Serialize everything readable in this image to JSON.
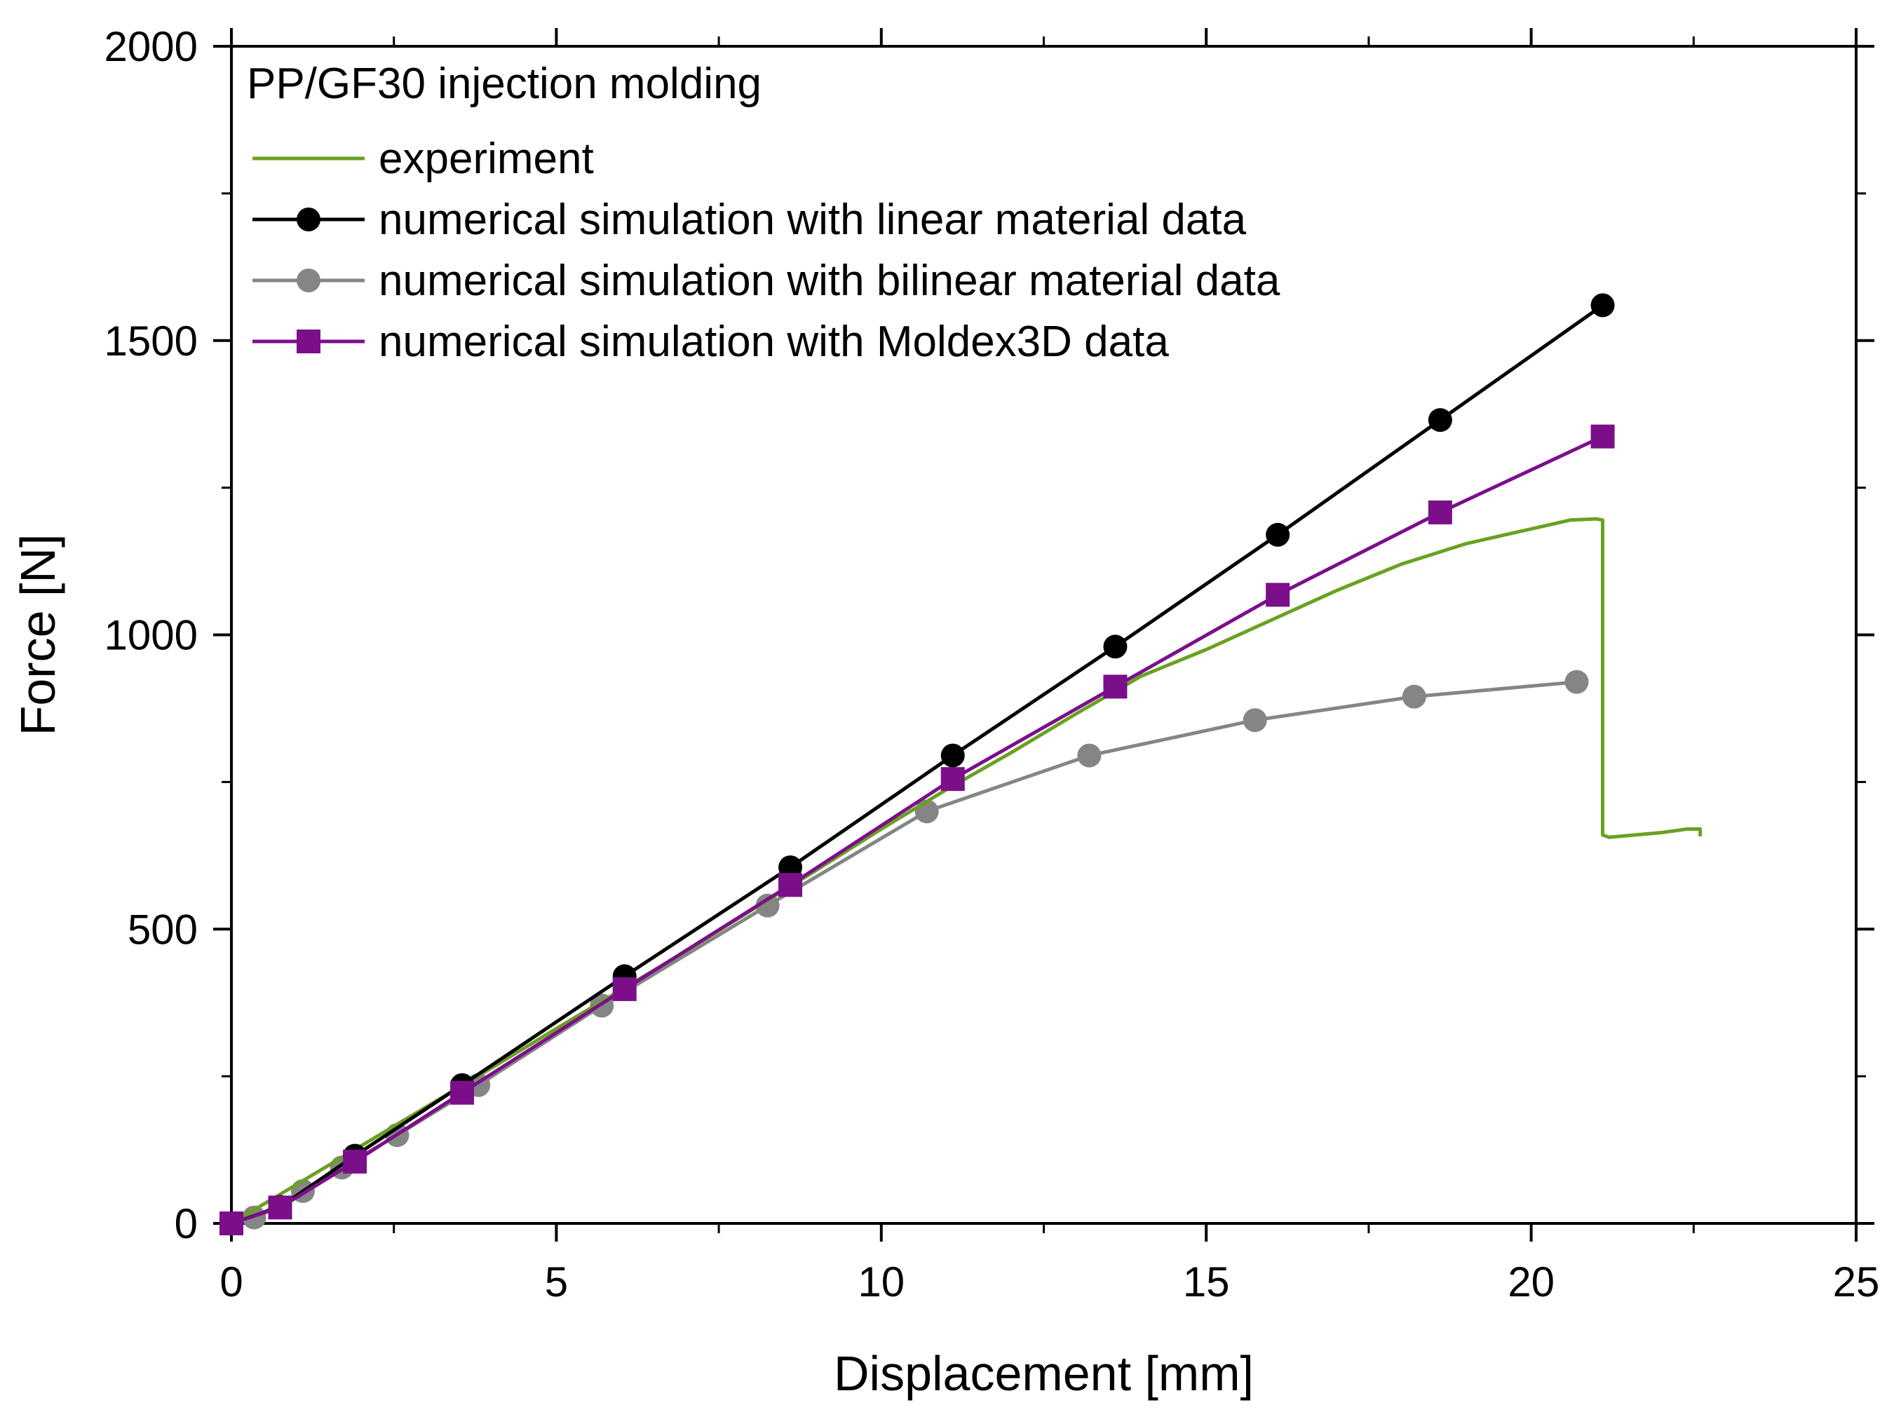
{
  "chart_data": {
    "type": "line",
    "title": "",
    "legend_title": "PP/GF30 injection molding",
    "legend_position": "top-left",
    "xlabel": "Displacement [mm]",
    "ylabel": "Force [N]",
    "xlim": [
      0,
      25
    ],
    "ylim": [
      0,
      2000
    ],
    "x_ticks": [
      0,
      5,
      10,
      15,
      20,
      25
    ],
    "y_ticks": [
      0,
      500,
      1000,
      1500,
      2000
    ],
    "x_minor_step": 2.5,
    "y_minor_step": 250,
    "grid": false,
    "series": [
      {
        "name": "experiment",
        "color": "#6aa121",
        "marker": "none",
        "x": [
          0,
          1,
          2,
          3,
          4,
          5,
          6,
          7,
          8,
          9,
          10,
          11,
          12,
          13,
          14,
          15,
          16,
          17,
          18,
          19,
          20,
          20.6,
          21.0,
          21.1,
          21.1,
          21.1,
          21.2,
          21.6,
          22.0,
          22.4,
          22.6,
          22.6
        ],
        "y": [
          0,
          66,
          132,
          198,
          264,
          331,
          397,
          463,
          532,
          600,
          670,
          737,
          800,
          866,
          930,
          975,
          1025,
          1075,
          1120,
          1155,
          1180,
          1195,
          1197,
          1195,
          1000,
          660,
          656,
          660,
          664,
          670,
          670,
          660
        ]
      },
      {
        "name": "numerical simulation with linear material data",
        "color": "#000000",
        "marker": "circle",
        "x": [
          0,
          0.75,
          1.9,
          3.55,
          6.05,
          8.6,
          11.1,
          13.6,
          16.1,
          18.6,
          21.1
        ],
        "y": [
          0,
          28,
          115,
          235,
          420,
          605,
          795,
          980,
          1170,
          1365,
          1560
        ]
      },
      {
        "name": "numerical simulation with bilinear material data",
        "color": "#858585",
        "marker": "circle",
        "x": [
          0,
          0.35,
          1.1,
          1.7,
          2.55,
          3.8,
          5.7,
          8.25,
          10.7,
          13.2,
          15.75,
          18.2,
          20.7
        ],
        "y": [
          0,
          10,
          55,
          95,
          150,
          235,
          370,
          540,
          700,
          795,
          855,
          895,
          920
        ]
      },
      {
        "name": "numerical simulation with Moldex3D data",
        "color": "#7b0f8a",
        "marker": "square",
        "x": [
          0,
          0.75,
          1.9,
          3.55,
          6.05,
          8.6,
          11.1,
          13.6,
          16.1,
          18.6,
          21.1
        ],
        "y": [
          0,
          27,
          105,
          222,
          398,
          575,
          755,
          912,
          1068,
          1208,
          1337
        ]
      }
    ]
  }
}
